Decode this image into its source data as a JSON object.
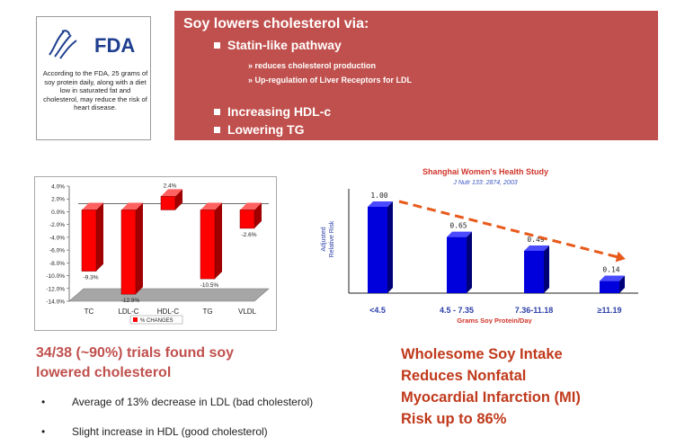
{
  "fda": {
    "logo_text": "FDA",
    "statement": "According to the FDA, 25 grams of soy protein daily, along with a diet low in saturated fat and cholesterol, may reduce the risk of heart disease."
  },
  "soy_box": {
    "title": "Soy lowers cholesterol via:",
    "points": [
      "Statin-like pathway",
      "Increasing HDL-c",
      "Lowering TG"
    ],
    "subpoints": [
      "reduces cholesterol production",
      "Up-regulation of Liver Receptors for LDL"
    ]
  },
  "left_text": {
    "headline_1": "34/38 (~90%) trials found soy",
    "headline_2": "lowered cholesterol",
    "bullets": [
      "Average of 13% decrease  in LDL (bad cholesterol)",
      "Slight increase in HDL  (good cholesterol)"
    ]
  },
  "right_text": {
    "lines": [
      "Wholesome Soy Intake",
      "Reduces Nonfatal",
      "Myocardial Infarction (MI)",
      "Risk up to 86%"
    ]
  },
  "colors": {
    "accent": "#c0504d",
    "bar_red": "#ff0000",
    "bar_blue": "#0000dd",
    "arrow": "#e85a1b"
  },
  "chart_data": [
    {
      "type": "bar",
      "categories": [
        "TC",
        "LDL-C",
        "HDL-C",
        "TG",
        "VLDL"
      ],
      "values": [
        -9.3,
        -12.9,
        2.4,
        -10.5,
        -2.6
      ],
      "data_labels": [
        "-9.3%",
        "-12.9%",
        "2.4%",
        "-10.5%",
        "-2.6%"
      ],
      "series": [
        {
          "name": "% CHANGES",
          "values": [
            -9.3,
            -12.9,
            2.4,
            -10.5,
            -2.6
          ]
        }
      ],
      "yticks": [
        "4.0%",
        "2.0%",
        "0.0%",
        "-2.0%",
        "-4.0%",
        "-6.0%",
        "-8.0%",
        "-10.0%",
        "-12.0%",
        "-14.0%"
      ],
      "ylim": [
        -14,
        4
      ],
      "legend": "bottom",
      "grid": false
    },
    {
      "type": "bar",
      "title": "Shanghai Women's Health Study",
      "subtitle": "J Nutr 133: 2874, 2003",
      "categories": [
        "<4.5",
        "4.5 - 7.35",
        "7.36-11.18",
        "≥11.19"
      ],
      "values": [
        1.0,
        0.65,
        0.49,
        0.14
      ],
      "data_labels": [
        "1.00",
        "0.65",
        "0.49",
        "0.14"
      ],
      "xlabel": "Grams Soy Protein/Day",
      "ylabel_1": "Adjusted",
      "ylabel_2": "Relative Risk",
      "ylim": [
        0,
        1.25
      ],
      "grid": false
    }
  ]
}
